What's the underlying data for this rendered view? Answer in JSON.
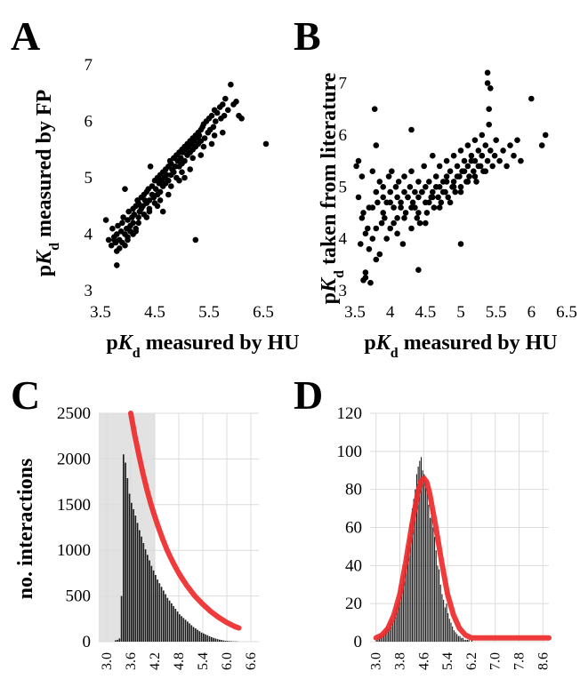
{
  "panels": {
    "A": "A",
    "B": "B",
    "C": "C",
    "D": "D"
  },
  "chart_data": [
    {
      "id": "A",
      "type": "scatter",
      "xlabel": {
        "prefix": "p",
        "italic": "K",
        "sub": "d",
        "rest": " measured by HU"
      },
      "ylabel": {
        "prefix": "p",
        "italic": "K",
        "sub": "d",
        "rest": " measured by FP"
      },
      "xlim": [
        3.5,
        6.5
      ],
      "ylim": [
        3,
        7
      ],
      "xticks": [
        "3.5",
        "4.5",
        "5.5",
        "6.5"
      ],
      "yticks": [
        "3",
        "4",
        "5",
        "6",
        "7"
      ],
      "grid": false,
      "x": [
        3.6,
        3.65,
        3.7,
        3.72,
        3.75,
        3.78,
        3.8,
        3.8,
        3.82,
        3.85,
        3.85,
        3.88,
        3.9,
        3.9,
        3.92,
        3.95,
        3.95,
        3.98,
        4.0,
        4.0,
        4.02,
        4.05,
        4.05,
        4.08,
        4.1,
        4.1,
        4.12,
        4.15,
        4.15,
        4.18,
        4.2,
        4.2,
        4.22,
        4.25,
        4.25,
        4.28,
        4.3,
        4.3,
        4.32,
        4.35,
        4.35,
        4.38,
        4.4,
        4.4,
        4.42,
        4.45,
        4.45,
        4.48,
        4.5,
        4.5,
        4.52,
        4.55,
        4.55,
        4.58,
        4.6,
        4.6,
        4.62,
        4.65,
        4.65,
        4.68,
        4.7,
        4.7,
        4.72,
        4.75,
        4.75,
        4.78,
        4.8,
        4.8,
        4.82,
        4.85,
        4.85,
        4.88,
        4.9,
        4.9,
        4.92,
        4.95,
        4.95,
        4.98,
        5.0,
        5.0,
        5.02,
        5.05,
        5.05,
        5.08,
        5.1,
        5.1,
        5.12,
        5.15,
        5.15,
        5.18,
        5.2,
        5.2,
        5.22,
        5.25,
        5.25,
        5.28,
        5.3,
        5.3,
        5.32,
        5.35,
        5.35,
        5.38,
        5.4,
        5.42,
        5.45,
        5.48,
        5.5,
        5.52,
        5.55,
        5.58,
        5.6,
        5.62,
        5.65,
        5.7,
        5.72,
        5.75,
        5.78,
        5.8,
        5.85,
        5.9,
        5.95,
        6.0,
        6.05,
        6.1,
        6.55,
        3.8,
        4.0,
        4.2,
        4.4,
        4.6,
        4.8,
        5.0,
        5.2,
        5.4,
        5.6,
        3.95,
        4.15,
        4.35,
        4.55,
        4.75,
        4.95,
        5.15,
        5.35,
        5.55,
        5.75,
        3.75,
        4.25,
        5.25,
        4.1,
        4.65,
        5.05
      ],
      "y": [
        4.25,
        3.9,
        3.8,
        4.1,
        3.95,
        3.85,
        3.45,
        4.0,
        4.15,
        3.9,
        3.75,
        4.05,
        4.2,
        3.85,
        4.3,
        4.0,
        4.8,
        4.1,
        4.25,
        3.9,
        4.4,
        4.15,
        4.05,
        4.3,
        4.45,
        4.2,
        4.35,
        4.5,
        4.1,
        4.6,
        4.55,
        4.3,
        4.4,
        4.65,
        4.45,
        4.5,
        4.7,
        4.35,
        4.6,
        4.75,
        4.55,
        4.8,
        4.6,
        4.45,
        5.2,
        4.85,
        4.7,
        4.65,
        4.95,
        4.55,
        4.8,
        5.0,
        4.7,
        4.9,
        5.05,
        4.75,
        4.95,
        5.1,
        4.85,
        5.0,
        5.15,
        4.9,
        5.05,
        5.2,
        4.95,
        5.3,
        5.25,
        5.05,
        5.15,
        5.35,
        5.1,
        5.2,
        5.4,
        5.0,
        5.3,
        5.45,
        5.2,
        5.35,
        5.5,
        5.25,
        5.45,
        5.55,
        5.3,
        5.5,
        5.6,
        5.4,
        5.55,
        5.65,
        5.45,
        5.6,
        5.7,
        5.5,
        5.65,
        5.75,
        5.55,
        5.7,
        5.8,
        5.6,
        5.75,
        5.85,
        5.65,
        5.9,
        5.95,
        5.7,
        6.0,
        5.8,
        6.05,
        5.85,
        6.1,
        5.9,
        6.2,
        6.0,
        6.15,
        6.25,
        6.05,
        6.3,
        6.1,
        6.4,
        6.2,
        6.65,
        6.3,
        6.35,
        6.1,
        6.05,
        5.6,
        3.7,
        3.95,
        4.2,
        4.4,
        4.6,
        4.85,
        5.1,
        5.35,
        5.55,
        5.75,
        3.8,
        4.05,
        4.3,
        4.5,
        4.7,
        4.95,
        5.15,
        5.4,
        5.6,
        5.8,
        3.9,
        4.5,
        3.9,
        4.0,
        4.4,
        5.0
      ]
    },
    {
      "id": "B",
      "type": "scatter",
      "xlabel": {
        "prefix": "p",
        "italic": "K",
        "sub": "d",
        "rest": " measured by HU"
      },
      "ylabel": {
        "prefix": "p",
        "italic": "K",
        "sub": "d",
        "rest": " taken from literature"
      },
      "xlim": [
        3.5,
        6.5
      ],
      "ylim": [
        3,
        7.3
      ],
      "xticks": [
        "3.5",
        "4",
        "4.5",
        "5",
        "5.5",
        "6",
        "6.5"
      ],
      "yticks": [
        "3",
        "4",
        "5",
        "6",
        "7"
      ],
      "grid": false,
      "x": [
        3.52,
        3.55,
        3.58,
        3.6,
        3.62,
        3.65,
        3.68,
        3.7,
        3.72,
        3.75,
        3.75,
        3.78,
        3.8,
        3.8,
        3.82,
        3.85,
        3.88,
        3.9,
        3.9,
        3.92,
        3.95,
        3.98,
        4.0,
        4.0,
        4.02,
        4.05,
        4.08,
        4.1,
        4.1,
        4.12,
        4.15,
        4.18,
        4.2,
        4.2,
        4.22,
        4.25,
        4.28,
        4.3,
        4.3,
        4.32,
        4.35,
        4.38,
        4.4,
        4.4,
        4.42,
        4.45,
        4.48,
        4.5,
        4.5,
        4.52,
        4.55,
        4.58,
        4.6,
        4.6,
        4.62,
        4.65,
        4.68,
        4.7,
        4.7,
        4.72,
        4.75,
        4.78,
        4.8,
        4.8,
        4.82,
        4.85,
        4.88,
        4.9,
        4.9,
        4.92,
        4.95,
        4.98,
        5.0,
        5.0,
        5.02,
        5.05,
        5.08,
        5.1,
        5.1,
        5.12,
        5.15,
        5.18,
        5.2,
        5.2,
        5.22,
        5.25,
        5.28,
        5.3,
        5.3,
        5.32,
        5.35,
        5.38,
        5.4,
        5.42,
        5.45,
        5.48,
        5.5,
        5.55,
        5.6,
        5.65,
        5.7,
        5.75,
        5.8,
        5.85,
        6.0,
        6.15,
        6.2,
        3.6,
        3.65,
        3.7,
        3.75,
        3.8,
        3.85,
        3.9,
        3.95,
        4.0,
        4.05,
        4.1,
        4.15,
        4.2,
        4.25,
        4.3,
        4.35,
        4.4,
        4.45,
        4.5,
        4.55,
        4.6,
        4.65,
        4.7,
        4.75,
        4.8,
        4.85,
        4.9,
        4.95,
        5.0,
        5.05,
        5.1,
        5.15,
        5.2,
        5.25,
        5.3,
        5.35,
        5.38,
        5.38,
        5.4,
        5.42,
        5.0,
        4.4,
        3.62,
        3.65,
        3.55,
        3.8,
        4.3
      ],
      "y": [
        5.4,
        4.8,
        3.9,
        5.2,
        4.5,
        3.35,
        4.2,
        4.6,
        3.15,
        5.3,
        4.0,
        6.5,
        4.9,
        3.6,
        4.7,
        5.1,
        4.3,
        4.8,
        5.0,
        4.4,
        4.7,
        5.2,
        4.9,
        4.2,
        5.3,
        4.6,
        5.0,
        4.8,
        4.4,
        5.1,
        4.7,
        3.9,
        4.9,
        5.2,
        4.5,
        4.8,
        5.0,
        4.6,
        5.3,
        4.7,
        4.9,
        4.4,
        5.1,
        4.8,
        4.3,
        4.9,
        5.4,
        4.7,
        5.0,
        4.5,
        5.1,
        4.8,
        5.6,
        4.9,
        4.6,
        5.2,
        4.8,
        5.0,
        5.4,
        4.7,
        5.1,
        4.9,
        5.5,
        5.2,
        4.8,
        5.3,
        5.0,
        5.6,
        5.1,
        4.9,
        5.4,
        5.2,
        5.7,
        5.0,
        5.3,
        5.5,
        5.1,
        5.8,
        5.4,
        5.2,
        5.6,
        5.3,
        5.9,
        5.5,
        5.1,
        5.7,
        5.4,
        6.0,
        5.6,
        5.3,
        5.8,
        5.5,
        6.2,
        5.7,
        5.4,
        5.6,
        5.9,
        5.5,
        5.7,
        5.4,
        5.8,
        5.6,
        5.9,
        5.5,
        6.7,
        5.8,
        6.0,
        4.4,
        4.1,
        3.8,
        4.6,
        4.2,
        3.7,
        4.5,
        4.0,
        4.7,
        4.3,
        4.1,
        4.6,
        4.4,
        4.8,
        4.2,
        4.6,
        4.5,
        4.9,
        4.3,
        4.7,
        4.8,
        5.0,
        4.6,
        4.9,
        5.1,
        4.7,
        5.0,
        5.2,
        4.9,
        5.3,
        5.1,
        5.5,
        5.2,
        5.4,
        5.6,
        5.3,
        7.2,
        7.0,
        6.5,
        6.9,
        3.9,
        3.4,
        3.2,
        3.25,
        5.5,
        5.8,
        6.1
      ]
    },
    {
      "id": "C",
      "type": "bar",
      "ylabel": "no. interactions",
      "xlim": [
        2.8,
        6.8
      ],
      "ylim": [
        0,
        2500
      ],
      "xticks": [
        "3.0",
        "3.6",
        "4.2",
        "4.8",
        "5.4",
        "6.0",
        "6.6"
      ],
      "xtick_values": [
        3.0,
        3.6,
        4.2,
        4.8,
        5.4,
        6.0,
        6.6
      ],
      "yticks": [
        "0",
        "500",
        "1000",
        "1500",
        "2000",
        "2500"
      ],
      "ytick_values": [
        0,
        500,
        1000,
        1500,
        2000,
        2500
      ],
      "grid": true,
      "bin_width": 0.05,
      "bin_starts": [
        3.2,
        3.25,
        3.3,
        3.35,
        3.4,
        3.45,
        3.5,
        3.55,
        3.6,
        3.65,
        3.7,
        3.75,
        3.8,
        3.85,
        3.9,
        3.95,
        4.0,
        4.05,
        4.1,
        4.15,
        4.2,
        4.25,
        4.3,
        4.35,
        4.4,
        4.45,
        4.5,
        4.55,
        4.6,
        4.65,
        4.7,
        4.75,
        4.8,
        4.85,
        4.9,
        4.95,
        5.0,
        5.05,
        5.1,
        5.15,
        5.2,
        5.25,
        5.3,
        5.35,
        5.4,
        5.45,
        5.5,
        5.55,
        5.6,
        5.65,
        5.7,
        5.75,
        5.8,
        5.85,
        5.9,
        5.95,
        6.0,
        6.05,
        6.1,
        6.15,
        6.2,
        6.25
      ],
      "values": [
        15,
        20,
        35,
        500,
        2050,
        1960,
        1790,
        1620,
        1520,
        1450,
        1380,
        1300,
        1220,
        1150,
        1080,
        1010,
        950,
        890,
        830,
        780,
        730,
        680,
        640,
        600,
        560,
        520,
        480,
        450,
        420,
        390,
        360,
        330,
        300,
        280,
        260,
        240,
        220,
        200,
        180,
        160,
        145,
        130,
        115,
        100,
        90,
        80,
        70,
        60,
        50,
        42,
        35,
        28,
        22,
        18,
        14,
        10,
        8,
        6,
        5,
        4,
        3,
        2
      ],
      "shaded_region": [
        2.8,
        4.2
      ],
      "fit_curve": {
        "x": [
          3.6,
          3.7,
          3.8,
          3.9,
          4.0,
          4.1,
          4.2,
          4.3,
          4.4,
          4.5,
          4.6,
          4.7,
          4.8,
          4.9,
          5.0,
          5.2,
          5.4,
          5.6,
          5.8,
          6.0,
          6.2,
          6.3
        ],
        "y": [
          2500,
          2260,
          2050,
          1850,
          1670,
          1510,
          1370,
          1240,
          1120,
          1010,
          915,
          830,
          750,
          680,
          615,
          500,
          410,
          330,
          265,
          210,
          165,
          150
        ]
      }
    },
    {
      "id": "D",
      "type": "bar",
      "ylim": [
        0,
        120
      ],
      "xlim": [
        2.8,
        8.8
      ],
      "xticks": [
        "3.0",
        "3.8",
        "4.6",
        "5.4",
        "6.2",
        "7.0",
        "7.8",
        "8.6"
      ],
      "xtick_values": [
        3.0,
        3.8,
        4.6,
        5.4,
        6.2,
        7.0,
        7.8,
        8.6
      ],
      "yticks": [
        "0",
        "20",
        "40",
        "60",
        "80",
        "100",
        "120"
      ],
      "ytick_values": [
        0,
        20,
        40,
        60,
        80,
        100,
        120
      ],
      "grid": true,
      "bin_width": 0.05,
      "bin_starts": [
        3.0,
        3.05,
        3.1,
        3.15,
        3.2,
        3.25,
        3.3,
        3.35,
        3.4,
        3.45,
        3.5,
        3.55,
        3.6,
        3.65,
        3.7,
        3.75,
        3.8,
        3.85,
        3.9,
        3.95,
        4.0,
        4.05,
        4.1,
        4.15,
        4.2,
        4.25,
        4.3,
        4.35,
        4.4,
        4.45,
        4.5,
        4.55,
        4.6,
        4.65,
        4.7,
        4.75,
        4.8,
        4.85,
        4.9,
        4.95,
        5.0,
        5.05,
        5.1,
        5.15,
        5.2,
        5.25,
        5.3,
        5.35,
        5.4,
        5.45,
        5.5,
        5.55,
        5.6,
        5.65,
        5.7,
        5.75,
        5.8,
        5.85,
        5.9,
        5.95,
        6.0,
        6.05,
        6.1,
        6.15,
        6.2
      ],
      "values": [
        1,
        2,
        3,
        4,
        3,
        5,
        6,
        8,
        7,
        10,
        12,
        11,
        15,
        18,
        20,
        22,
        27,
        30,
        35,
        40,
        45,
        50,
        55,
        62,
        70,
        75,
        80,
        88,
        92,
        95,
        97,
        90,
        88,
        85,
        80,
        72,
        65,
        70,
        60,
        55,
        48,
        40,
        38,
        30,
        25,
        22,
        18,
        20,
        15,
        12,
        10,
        8,
        6,
        5,
        4,
        3,
        3,
        2,
        2,
        1,
        1,
        1,
        1,
        0,
        1
      ],
      "fit_curve": {
        "x": [
          3.0,
          3.2,
          3.4,
          3.6,
          3.8,
          4.0,
          4.2,
          4.4,
          4.5,
          4.6,
          4.7,
          4.8,
          5.0,
          5.2,
          5.4,
          5.6,
          5.8,
          6.0,
          6.2,
          6.4,
          6.8,
          7.2,
          7.6,
          8.0,
          8.4,
          8.8
        ],
        "y": [
          2,
          3.5,
          7,
          14,
          25,
          42,
          61,
          78,
          84,
          86,
          84,
          78,
          61,
          42,
          25,
          14,
          7,
          3.5,
          2,
          2,
          2,
          2,
          2,
          2,
          2,
          2
        ]
      }
    }
  ]
}
